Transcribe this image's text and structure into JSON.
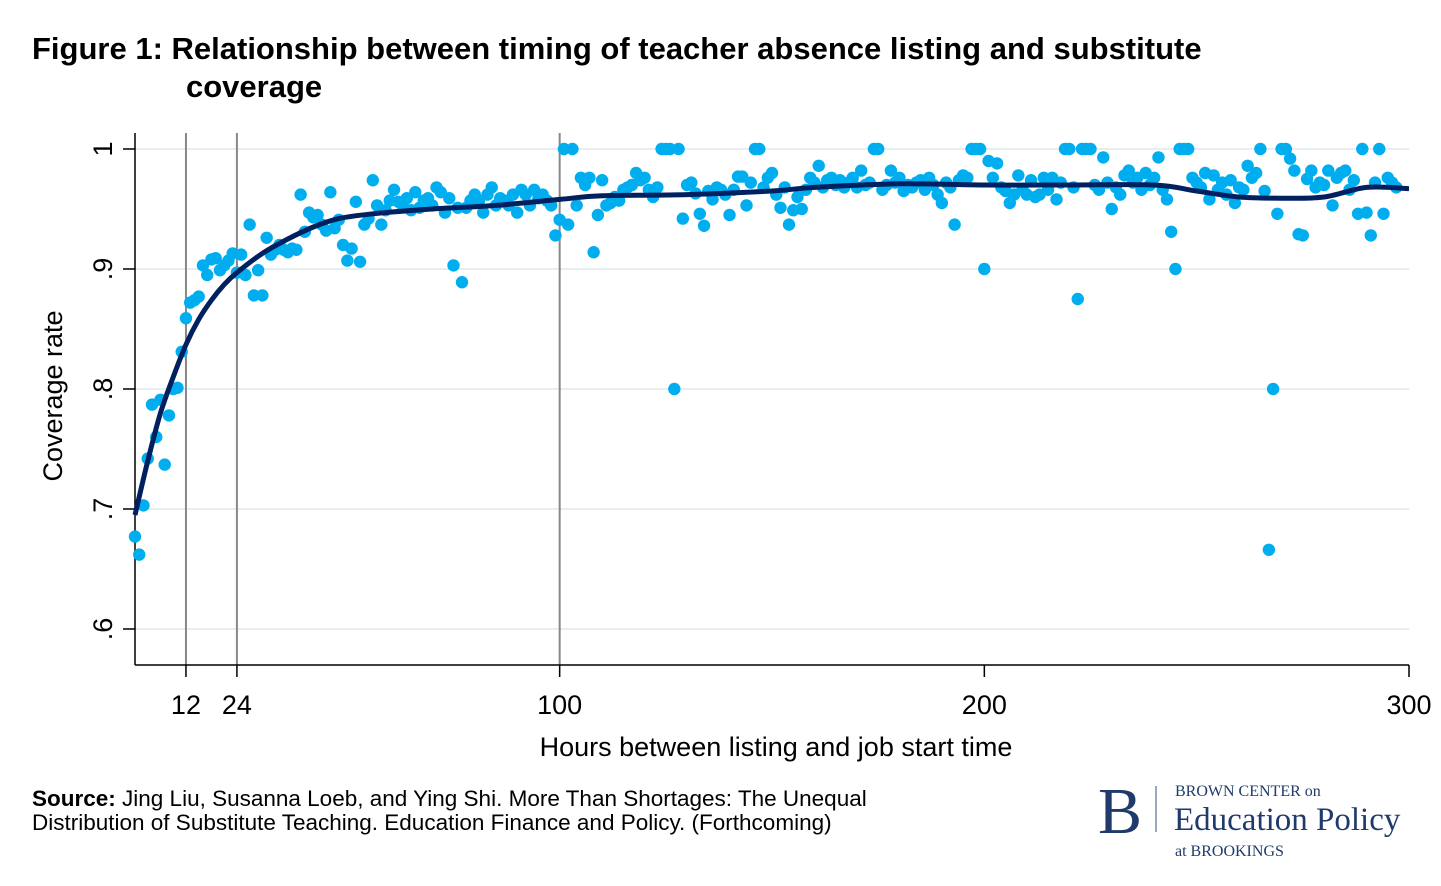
{
  "title_line1": "Figure 1: Relationship between timing of teacher absence listing and substitute",
  "title_line2": "coverage",
  "source_label": "Source:",
  "source_line1": " Jing Liu, Susanna Loeb, and Ying Shi. More Than Shortages: The Unequal",
  "source_line2": "Distribution of Substitute Teaching. Education Finance and Policy. (Forthcoming)",
  "logo": {
    "letter": "B",
    "line1": "BROWN CENTER on",
    "line2": "Education Policy",
    "line3": "at BROOKINGS"
  },
  "colors": {
    "points": "#00aeef",
    "fit_line": "#002060",
    "reference_lines": "#888888",
    "grid": "#e6eef2"
  },
  "chart_data": {
    "type": "scatter",
    "xlabel": "Hours between listing and job start time",
    "ylabel": "Coverage rate",
    "xlim": [
      0,
      300
    ],
    "ylim": [
      0.6,
      1.0
    ],
    "xticks": [
      12,
      24,
      100,
      200,
      300
    ],
    "xtick_labels": [
      "12",
      "24",
      "100",
      "200",
      "300"
    ],
    "yticks": [
      0.6,
      0.7,
      0.8,
      0.9,
      1.0
    ],
    "ytick_labels": [
      ".6",
      ".7",
      ".8",
      ".9",
      "1"
    ],
    "reference_lines_x": [
      12,
      24,
      100
    ],
    "grid": "horizontal",
    "points": [
      [
        0,
        0.677
      ],
      [
        1,
        0.662
      ],
      [
        2,
        0.703
      ],
      [
        3,
        0.742
      ],
      [
        4,
        0.787
      ],
      [
        5,
        0.76
      ],
      [
        6,
        0.791
      ],
      [
        7,
        0.737
      ],
      [
        8,
        0.778
      ],
      [
        9,
        0.8
      ],
      [
        10,
        0.801
      ],
      [
        11,
        0.831
      ],
      [
        12,
        0.859
      ],
      [
        13,
        0.872
      ],
      [
        14,
        0.874
      ],
      [
        15,
        0.877
      ],
      [
        16,
        0.903
      ],
      [
        17,
        0.895
      ],
      [
        18,
        0.908
      ],
      [
        19,
        0.909
      ],
      [
        20,
        0.899
      ],
      [
        21,
        0.903
      ],
      [
        22,
        0.907
      ],
      [
        23,
        0.913
      ],
      [
        24,
        0.897
      ],
      [
        25,
        0.912
      ],
      [
        26,
        0.895
      ],
      [
        27,
        0.937
      ],
      [
        28,
        0.878
      ],
      [
        29,
        0.899
      ],
      [
        30,
        0.878
      ],
      [
        31,
        0.926
      ],
      [
        32,
        0.912
      ],
      [
        33,
        0.916
      ],
      [
        34,
        0.92
      ],
      [
        35,
        0.916
      ],
      [
        36,
        0.914
      ],
      [
        37,
        0.917
      ],
      [
        38,
        0.916
      ],
      [
        39,
        0.962
      ],
      [
        40,
        0.931
      ],
      [
        41,
        0.947
      ],
      [
        42,
        0.943
      ],
      [
        43,
        0.945
      ],
      [
        44,
        0.937
      ],
      [
        45,
        0.932
      ],
      [
        46,
        0.964
      ],
      [
        47,
        0.934
      ],
      [
        48,
        0.941
      ],
      [
        49,
        0.92
      ],
      [
        50,
        0.907
      ],
      [
        51,
        0.917
      ],
      [
        52,
        0.956
      ],
      [
        53,
        0.906
      ],
      [
        54,
        0.937
      ],
      [
        55,
        0.942
      ],
      [
        56,
        0.974
      ],
      [
        57,
        0.953
      ],
      [
        58,
        0.937
      ],
      [
        59,
        0.949
      ],
      [
        60,
        0.957
      ],
      [
        61,
        0.966
      ],
      [
        62,
        0.956
      ],
      [
        63,
        0.953
      ],
      [
        64,
        0.959
      ],
      [
        65,
        0.949
      ],
      [
        66,
        0.964
      ],
      [
        67,
        0.951
      ],
      [
        68,
        0.957
      ],
      [
        69,
        0.959
      ],
      [
        70,
        0.953
      ],
      [
        71,
        0.968
      ],
      [
        72,
        0.964
      ],
      [
        73,
        0.947
      ],
      [
        74,
        0.959
      ],
      [
        75,
        0.903
      ],
      [
        76,
        0.951
      ],
      [
        77,
        0.889
      ],
      [
        78,
        0.951
      ],
      [
        79,
        0.957
      ],
      [
        80,
        0.962
      ],
      [
        81,
        0.957
      ],
      [
        82,
        0.947
      ],
      [
        83,
        0.962
      ],
      [
        84,
        0.968
      ],
      [
        85,
        0.953
      ],
      [
        86,
        0.959
      ],
      [
        87,
        0.957
      ],
      [
        88,
        0.953
      ],
      [
        89,
        0.962
      ],
      [
        90,
        0.947
      ],
      [
        91,
        0.966
      ],
      [
        92,
        0.962
      ],
      [
        93,
        0.953
      ],
      [
        94,
        0.966
      ],
      [
        95,
        0.959
      ],
      [
        96,
        0.962
      ],
      [
        97,
        0.957
      ],
      [
        98,
        0.953
      ],
      [
        99,
        0.928
      ],
      [
        100,
        0.941
      ],
      [
        101,
        1
      ],
      [
        102,
        0.937
      ],
      [
        103,
        1
      ],
      [
        104,
        0.953
      ],
      [
        105,
        0.976
      ],
      [
        106,
        0.97
      ],
      [
        107,
        0.976
      ],
      [
        108,
        0.914
      ],
      [
        109,
        0.945
      ],
      [
        110,
        0.974
      ],
      [
        111,
        0.953
      ],
      [
        112,
        0.955
      ],
      [
        113,
        0.96
      ],
      [
        114,
        0.957
      ],
      [
        115,
        0.966
      ],
      [
        116,
        0.968
      ],
      [
        117,
        0.97
      ],
      [
        118,
        0.98
      ],
      [
        119,
        0.974
      ],
      [
        120,
        0.976
      ],
      [
        121,
        0.966
      ],
      [
        122,
        0.96
      ],
      [
        123,
        0.968
      ],
      [
        124,
        1
      ],
      [
        125,
        1
      ],
      [
        126,
        1
      ],
      [
        127,
        0.8
      ],
      [
        128,
        1
      ],
      [
        129,
        0.942
      ],
      [
        130,
        0.97
      ],
      [
        131,
        0.972
      ],
      [
        132,
        0.963
      ],
      [
        133,
        0.946
      ],
      [
        134,
        0.936
      ],
      [
        135,
        0.965
      ],
      [
        136,
        0.958
      ],
      [
        137,
        0.968
      ],
      [
        138,
        0.966
      ],
      [
        139,
        0.962
      ],
      [
        140,
        0.945
      ],
      [
        141,
        0.966
      ],
      [
        142,
        0.977
      ],
      [
        143,
        0.977
      ],
      [
        144,
        0.953
      ],
      [
        145,
        0.972
      ],
      [
        146,
        1
      ],
      [
        147,
        1
      ],
      [
        148,
        0.968
      ],
      [
        149,
        0.976
      ],
      [
        150,
        0.98
      ],
      [
        151,
        0.962
      ],
      [
        152,
        0.951
      ],
      [
        153,
        0.968
      ],
      [
        154,
        0.937
      ],
      [
        155,
        0.949
      ],
      [
        156,
        0.96
      ],
      [
        157,
        0.95
      ],
      [
        158,
        0.966
      ],
      [
        159,
        0.976
      ],
      [
        160,
        0.972
      ],
      [
        161,
        0.986
      ],
      [
        162,
        0.968
      ],
      [
        163,
        0.974
      ],
      [
        164,
        0.976
      ],
      [
        165,
        0.97
      ],
      [
        166,
        0.974
      ],
      [
        167,
        0.968
      ],
      [
        168,
        0.972
      ],
      [
        169,
        0.976
      ],
      [
        170,
        0.968
      ],
      [
        171,
        0.982
      ],
      [
        172,
        0.97
      ],
      [
        173,
        0.972
      ],
      [
        174,
        1
      ],
      [
        175,
        1
      ],
      [
        176,
        0.966
      ],
      [
        177,
        0.97
      ],
      [
        178,
        0.982
      ],
      [
        179,
        0.972
      ],
      [
        180,
        0.976
      ],
      [
        181,
        0.965
      ],
      [
        182,
        0.97
      ],
      [
        183,
        0.968
      ],
      [
        184,
        0.972
      ],
      [
        185,
        0.974
      ],
      [
        186,
        0.966
      ],
      [
        187,
        0.976
      ],
      [
        188,
        0.97
      ],
      [
        189,
        0.962
      ],
      [
        190,
        0.955
      ],
      [
        191,
        0.972
      ],
      [
        192,
        0.968
      ],
      [
        193,
        0.937
      ],
      [
        194,
        0.974
      ],
      [
        195,
        0.978
      ],
      [
        196,
        0.976
      ],
      [
        197,
        1
      ],
      [
        198,
        1
      ],
      [
        199,
        1
      ],
      [
        200,
        0.9
      ],
      [
        201,
        0.99
      ],
      [
        202,
        0.976
      ],
      [
        203,
        0.988
      ],
      [
        204,
        0.968
      ],
      [
        205,
        0.965
      ],
      [
        206,
        0.955
      ],
      [
        207,
        0.962
      ],
      [
        208,
        0.978
      ],
      [
        209,
        0.966
      ],
      [
        210,
        0.962
      ],
      [
        211,
        0.974
      ],
      [
        212,
        0.96
      ],
      [
        213,
        0.962
      ],
      [
        214,
        0.976
      ],
      [
        215,
        0.966
      ],
      [
        216,
        0.976
      ],
      [
        217,
        0.958
      ],
      [
        218,
        0.972
      ],
      [
        219,
        1
      ],
      [
        220,
        1
      ],
      [
        221,
        0.968
      ],
      [
        222,
        0.875
      ],
      [
        223,
        1
      ],
      [
        224,
        1
      ],
      [
        225,
        1
      ],
      [
        226,
        0.97
      ],
      [
        227,
        0.966
      ],
      [
        228,
        0.993
      ],
      [
        229,
        0.972
      ],
      [
        230,
        0.95
      ],
      [
        231,
        0.968
      ],
      [
        232,
        0.962
      ],
      [
        233,
        0.978
      ],
      [
        234,
        0.982
      ],
      [
        235,
        0.972
      ],
      [
        236,
        0.976
      ],
      [
        237,
        0.966
      ],
      [
        238,
        0.98
      ],
      [
        239,
        0.97
      ],
      [
        240,
        0.976
      ],
      [
        241,
        0.993
      ],
      [
        242,
        0.966
      ],
      [
        243,
        0.958
      ],
      [
        244,
        0.931
      ],
      [
        245,
        0.9
      ],
      [
        246,
        1
      ],
      [
        247,
        1
      ],
      [
        248,
        1
      ],
      [
        249,
        0.976
      ],
      [
        250,
        0.972
      ],
      [
        251,
        0.968
      ],
      [
        252,
        0.98
      ],
      [
        253,
        0.958
      ],
      [
        254,
        0.978
      ],
      [
        255,
        0.966
      ],
      [
        256,
        0.972
      ],
      [
        257,
        0.962
      ],
      [
        258,
        0.974
      ],
      [
        259,
        0.955
      ],
      [
        260,
        0.968
      ],
      [
        261,
        0.966
      ],
      [
        262,
        0.986
      ],
      [
        263,
        0.976
      ],
      [
        264,
        0.98
      ],
      [
        265,
        1
      ],
      [
        266,
        0.965
      ],
      [
        267,
        0.666
      ],
      [
        268,
        0.8
      ],
      [
        269,
        0.946
      ],
      [
        270,
        1
      ],
      [
        271,
        1
      ],
      [
        272,
        0.992
      ],
      [
        273,
        0.982
      ],
      [
        274,
        0.929
      ],
      [
        275,
        0.928
      ],
      [
        276,
        0.975
      ],
      [
        277,
        0.982
      ],
      [
        278,
        0.968
      ],
      [
        279,
        0.972
      ],
      [
        280,
        0.97
      ],
      [
        281,
        0.982
      ],
      [
        282,
        0.953
      ],
      [
        283,
        0.976
      ],
      [
        284,
        0.98
      ],
      [
        285,
        0.982
      ],
      [
        286,
        0.966
      ],
      [
        287,
        0.974
      ],
      [
        288,
        0.946
      ],
      [
        289,
        1
      ],
      [
        290,
        0.947
      ],
      [
        291,
        0.928
      ],
      [
        292,
        0.972
      ],
      [
        293,
        1
      ],
      [
        294,
        0.946
      ],
      [
        295,
        0.976
      ],
      [
        296,
        0.972
      ],
      [
        297,
        0.968
      ]
    ],
    "fit_line": [
      [
        0,
        0.695
      ],
      [
        3,
        0.74
      ],
      [
        6,
        0.78
      ],
      [
        9,
        0.81
      ],
      [
        12,
        0.837
      ],
      [
        15,
        0.858
      ],
      [
        18,
        0.874
      ],
      [
        21,
        0.887
      ],
      [
        24,
        0.897
      ],
      [
        30,
        0.913
      ],
      [
        36,
        0.925
      ],
      [
        42,
        0.935
      ],
      [
        48,
        0.942
      ],
      [
        56,
        0.946
      ],
      [
        70,
        0.95
      ],
      [
        85,
        0.953
      ],
      [
        100,
        0.958
      ],
      [
        110,
        0.961
      ],
      [
        130,
        0.962
      ],
      [
        150,
        0.965
      ],
      [
        160,
        0.968
      ],
      [
        180,
        0.971
      ],
      [
        200,
        0.97
      ],
      [
        220,
        0.97
      ],
      [
        240,
        0.97
      ],
      [
        250,
        0.965
      ],
      [
        260,
        0.96
      ],
      [
        270,
        0.959
      ],
      [
        280,
        0.96
      ],
      [
        290,
        0.968
      ],
      [
        300,
        0.967
      ]
    ]
  }
}
